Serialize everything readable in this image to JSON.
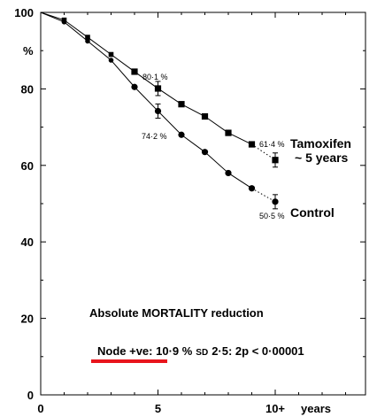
{
  "chart_data": {
    "type": "line",
    "xlabel": "years",
    "ylabel": "%",
    "xlim": [
      0,
      17
    ],
    "ylim": [
      0,
      100
    ],
    "x_ticks": [
      "0",
      "5",
      "10+"
    ],
    "y_ticks": [
      "0",
      "20",
      "40",
      "60",
      "80",
      "100"
    ],
    "grid": false,
    "series": [
      {
        "name": "Tamoxifen ~ 5 years",
        "marker": "square",
        "color": "#000000",
        "x": [
          0,
          1,
          2,
          3,
          4,
          5,
          6,
          7,
          8,
          9,
          10
        ],
        "y": [
          100,
          98,
          93.5,
          89,
          84.5,
          80.1,
          76,
          72.8,
          68.5,
          65.5,
          61.4
        ]
      },
      {
        "name": "Control",
        "marker": "circle",
        "color": "#000000",
        "x": [
          0,
          1,
          2,
          3,
          4,
          5,
          6,
          7,
          8,
          9,
          10
        ],
        "y": [
          100,
          97.5,
          92.5,
          87.5,
          80.5,
          74.2,
          68,
          63.5,
          58,
          54,
          50.5
        ]
      }
    ],
    "annotations": {
      "tam_5": "80·1 %",
      "ctrl_5": "74·2 %",
      "tam_10": "61·4 %",
      "ctrl_10": "50·5 %",
      "tam_label_line1": "Tamoxifen",
      "tam_label_line2": "~ 5 years",
      "ctrl_label": "Control",
      "headline": "Absolute MORTALITY reduction",
      "stats_main": "Node +ve: 10·9 %",
      "stats_sd": "SD",
      "stats_rest": "2·5: 2p < 0·00001",
      "highlight_color": "#e8141c"
    }
  }
}
